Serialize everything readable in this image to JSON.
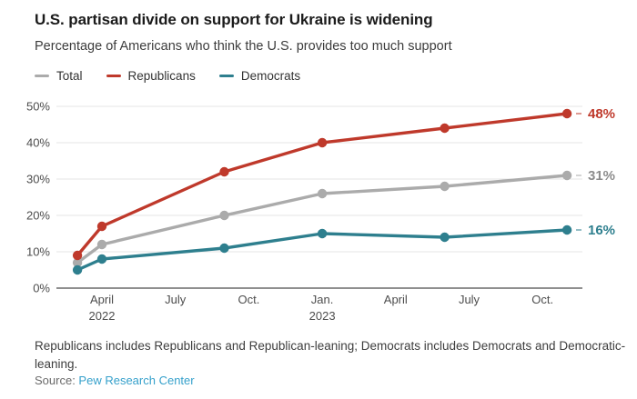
{
  "header": {
    "title": "U.S. partisan divide on support for Ukraine is widening",
    "subtitle": "Percentage of Americans who think the U.S. provides too much support"
  },
  "legend": [
    {
      "label": "Total",
      "color": "#ababab"
    },
    {
      "label": "Republicans",
      "color": "#bf392b"
    },
    {
      "label": "Democrats",
      "color": "#2e7f8e"
    }
  ],
  "chart_data": {
    "type": "line",
    "title": "U.S. partisan divide on support for Ukraine is widening",
    "subtitle": "Percentage of Americans who think the U.S. provides too much support",
    "x_unit": "months since April 2022",
    "x": [
      -1,
      0,
      5,
      9,
      14,
      19
    ],
    "series": [
      {
        "name": "Total",
        "color": "#ababab",
        "values": [
          7,
          12,
          20,
          26,
          28,
          31
        ],
        "end_label": "31%",
        "end_label_color": "#8c8c8c"
      },
      {
        "name": "Republicans",
        "color": "#bf392b",
        "values": [
          9,
          17,
          32,
          40,
          44,
          48
        ],
        "end_label": "48%"
      },
      {
        "name": "Democrats",
        "color": "#2e7f8e",
        "values": [
          5,
          8,
          11,
          15,
          14,
          16
        ],
        "end_label": "16%"
      }
    ],
    "ylim": [
      0,
      50
    ],
    "y_ticks": [
      0,
      10,
      20,
      30,
      40,
      50
    ],
    "y_tick_labels": [
      "0%",
      "10%",
      "20%",
      "30%",
      "40%",
      "50%"
    ],
    "x_ticks": [
      {
        "m": 0,
        "line1": "April",
        "line2": "2022"
      },
      {
        "m": 3,
        "line1": "July"
      },
      {
        "m": 6,
        "line1": "Oct."
      },
      {
        "m": 9,
        "line1": "Jan.",
        "line2": "2023"
      },
      {
        "m": 12,
        "line1": "April"
      },
      {
        "m": 15,
        "line1": "July"
      },
      {
        "m": 18,
        "line1": "Oct."
      }
    ],
    "grid": true,
    "legend_position": "top-left"
  },
  "footer": {
    "note": "Republicans includes Republicans and Republican-leaning; Democrats includes Democrats and Democratic-leaning.",
    "source_prefix": "Source: ",
    "source_link": "Pew Research Center"
  },
  "colors": {
    "grid": "#e4e4e4",
    "axis": "#8f8f8f",
    "tick_text": "#4d4d4d",
    "link": "#35a0cb"
  }
}
